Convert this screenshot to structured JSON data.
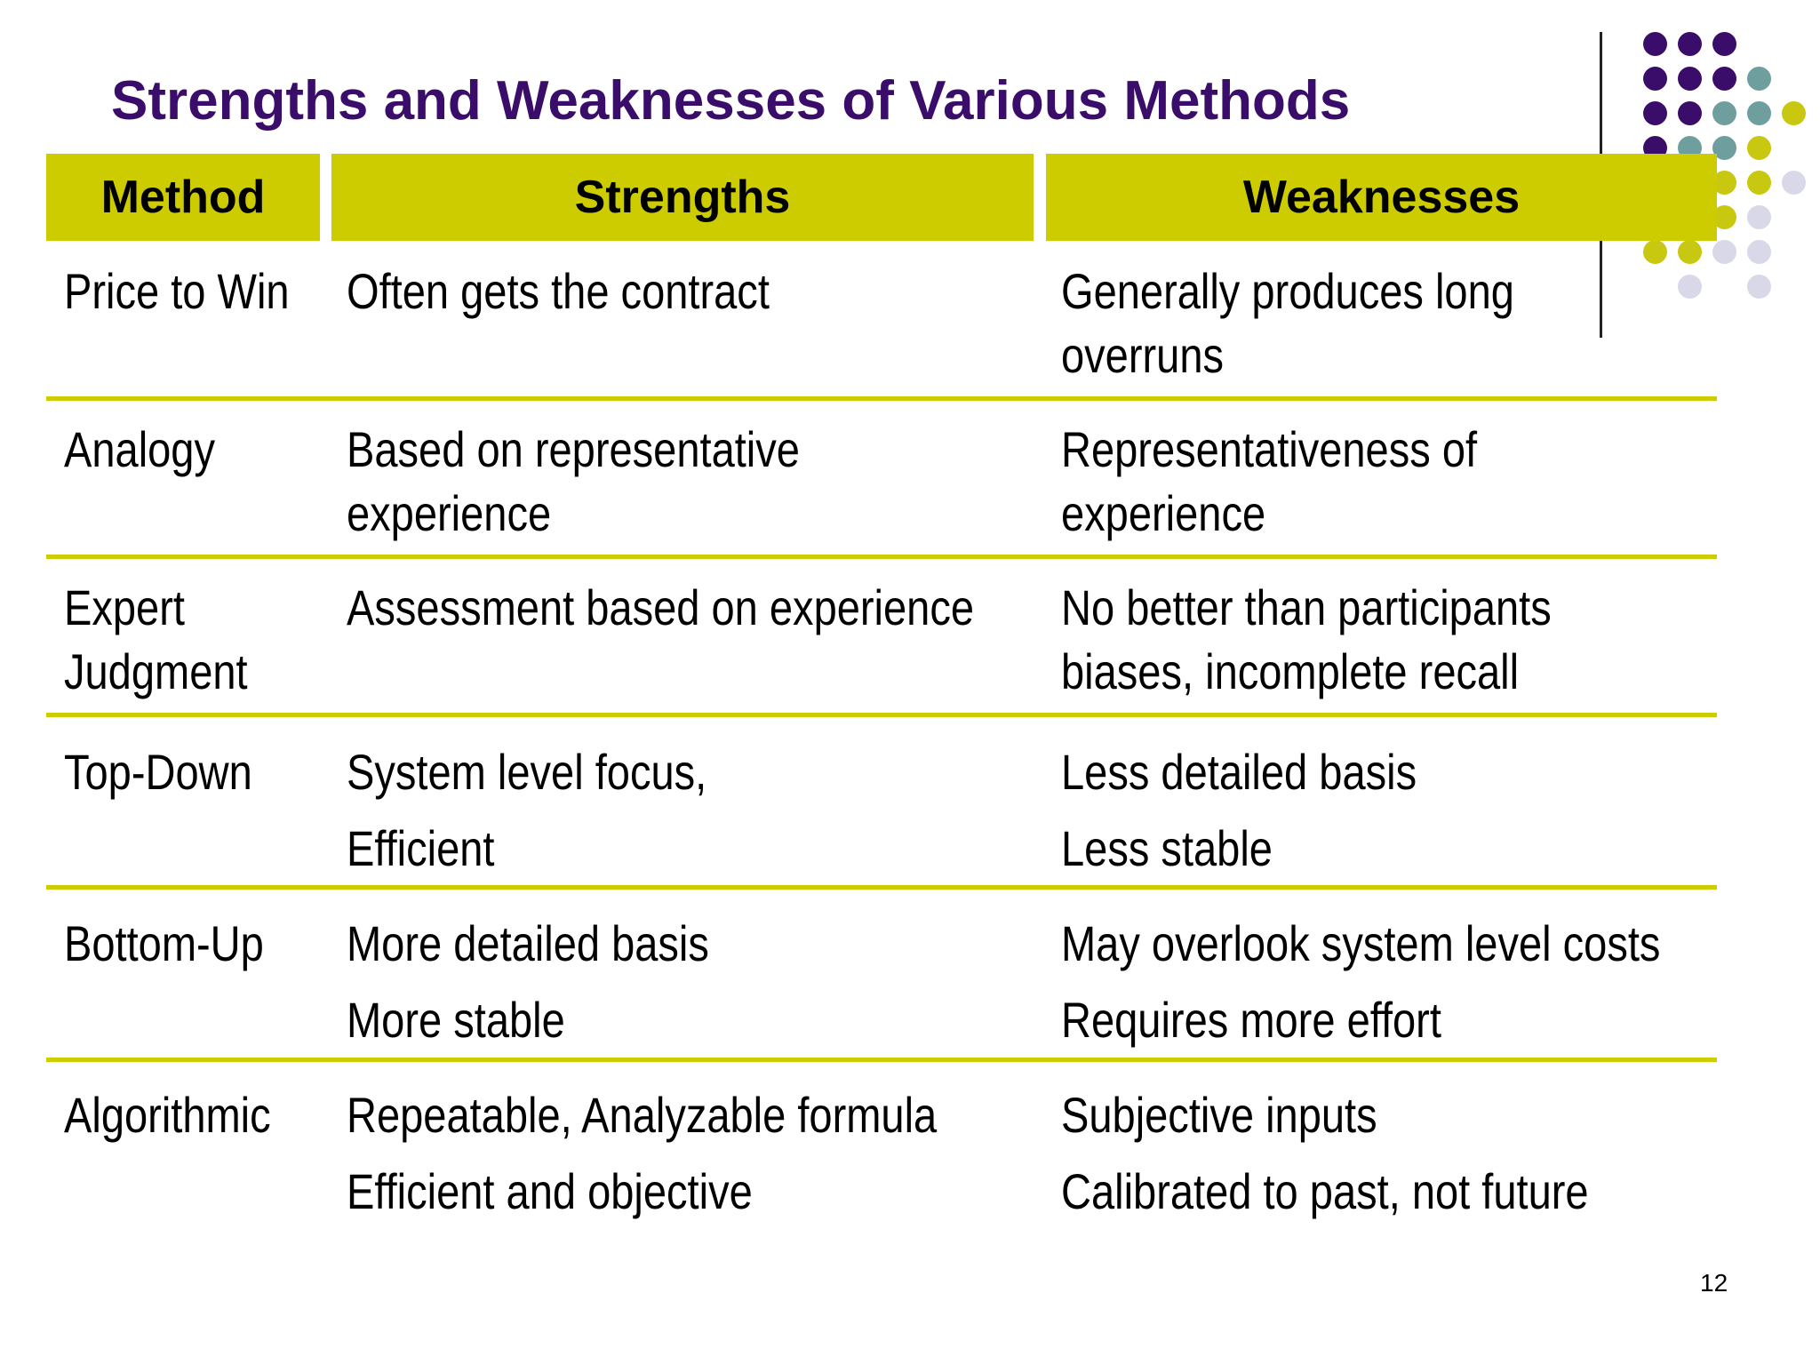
{
  "title": "Strengths and Weaknesses of Various Methods",
  "page_number": "12",
  "colors": {
    "title": "#3a0d6b",
    "header_fill": "#cccc00",
    "dot_purple": "#3a0d6b",
    "dot_teal": "#6e9e9e",
    "dot_olive": "#c8c810",
    "dot_lavender": "#d8d8e8"
  },
  "table": {
    "headers": [
      "Method",
      "Strengths",
      "Weaknesses"
    ],
    "rows": [
      {
        "method": [
          "Price to Win"
        ],
        "strengths": [
          "Often gets the contract"
        ],
        "weaknesses": [
          "Generally produces long",
          "overruns"
        ]
      },
      {
        "method": [
          "Analogy"
        ],
        "strengths": [
          "Based on representative",
          "experience"
        ],
        "weaknesses": [
          "Representativeness of",
          "experience"
        ]
      },
      {
        "method": [
          "Expert",
          "Judgment"
        ],
        "strengths": [
          "Assessment based on experience"
        ],
        "weaknesses": [
          "No better than participants",
          "biases, incomplete recall"
        ]
      },
      {
        "method": [
          "Top-Down"
        ],
        "strengths": [
          "System level focus,",
          "Efficient"
        ],
        "weaknesses": [
          "Less detailed basis",
          "Less stable"
        ]
      },
      {
        "method": [
          "Bottom-Up"
        ],
        "strengths": [
          "More detailed basis",
          "More stable"
        ],
        "weaknesses": [
          "May overlook system level costs",
          "Requires more effort"
        ]
      },
      {
        "method": [
          "Algorithmic"
        ],
        "strengths": [
          "Repeatable, Analyzable formula",
          "Efficient and objective"
        ],
        "weaknesses": [
          "Subjective inputs",
          "Calibrated to past, not future"
        ]
      }
    ]
  }
}
